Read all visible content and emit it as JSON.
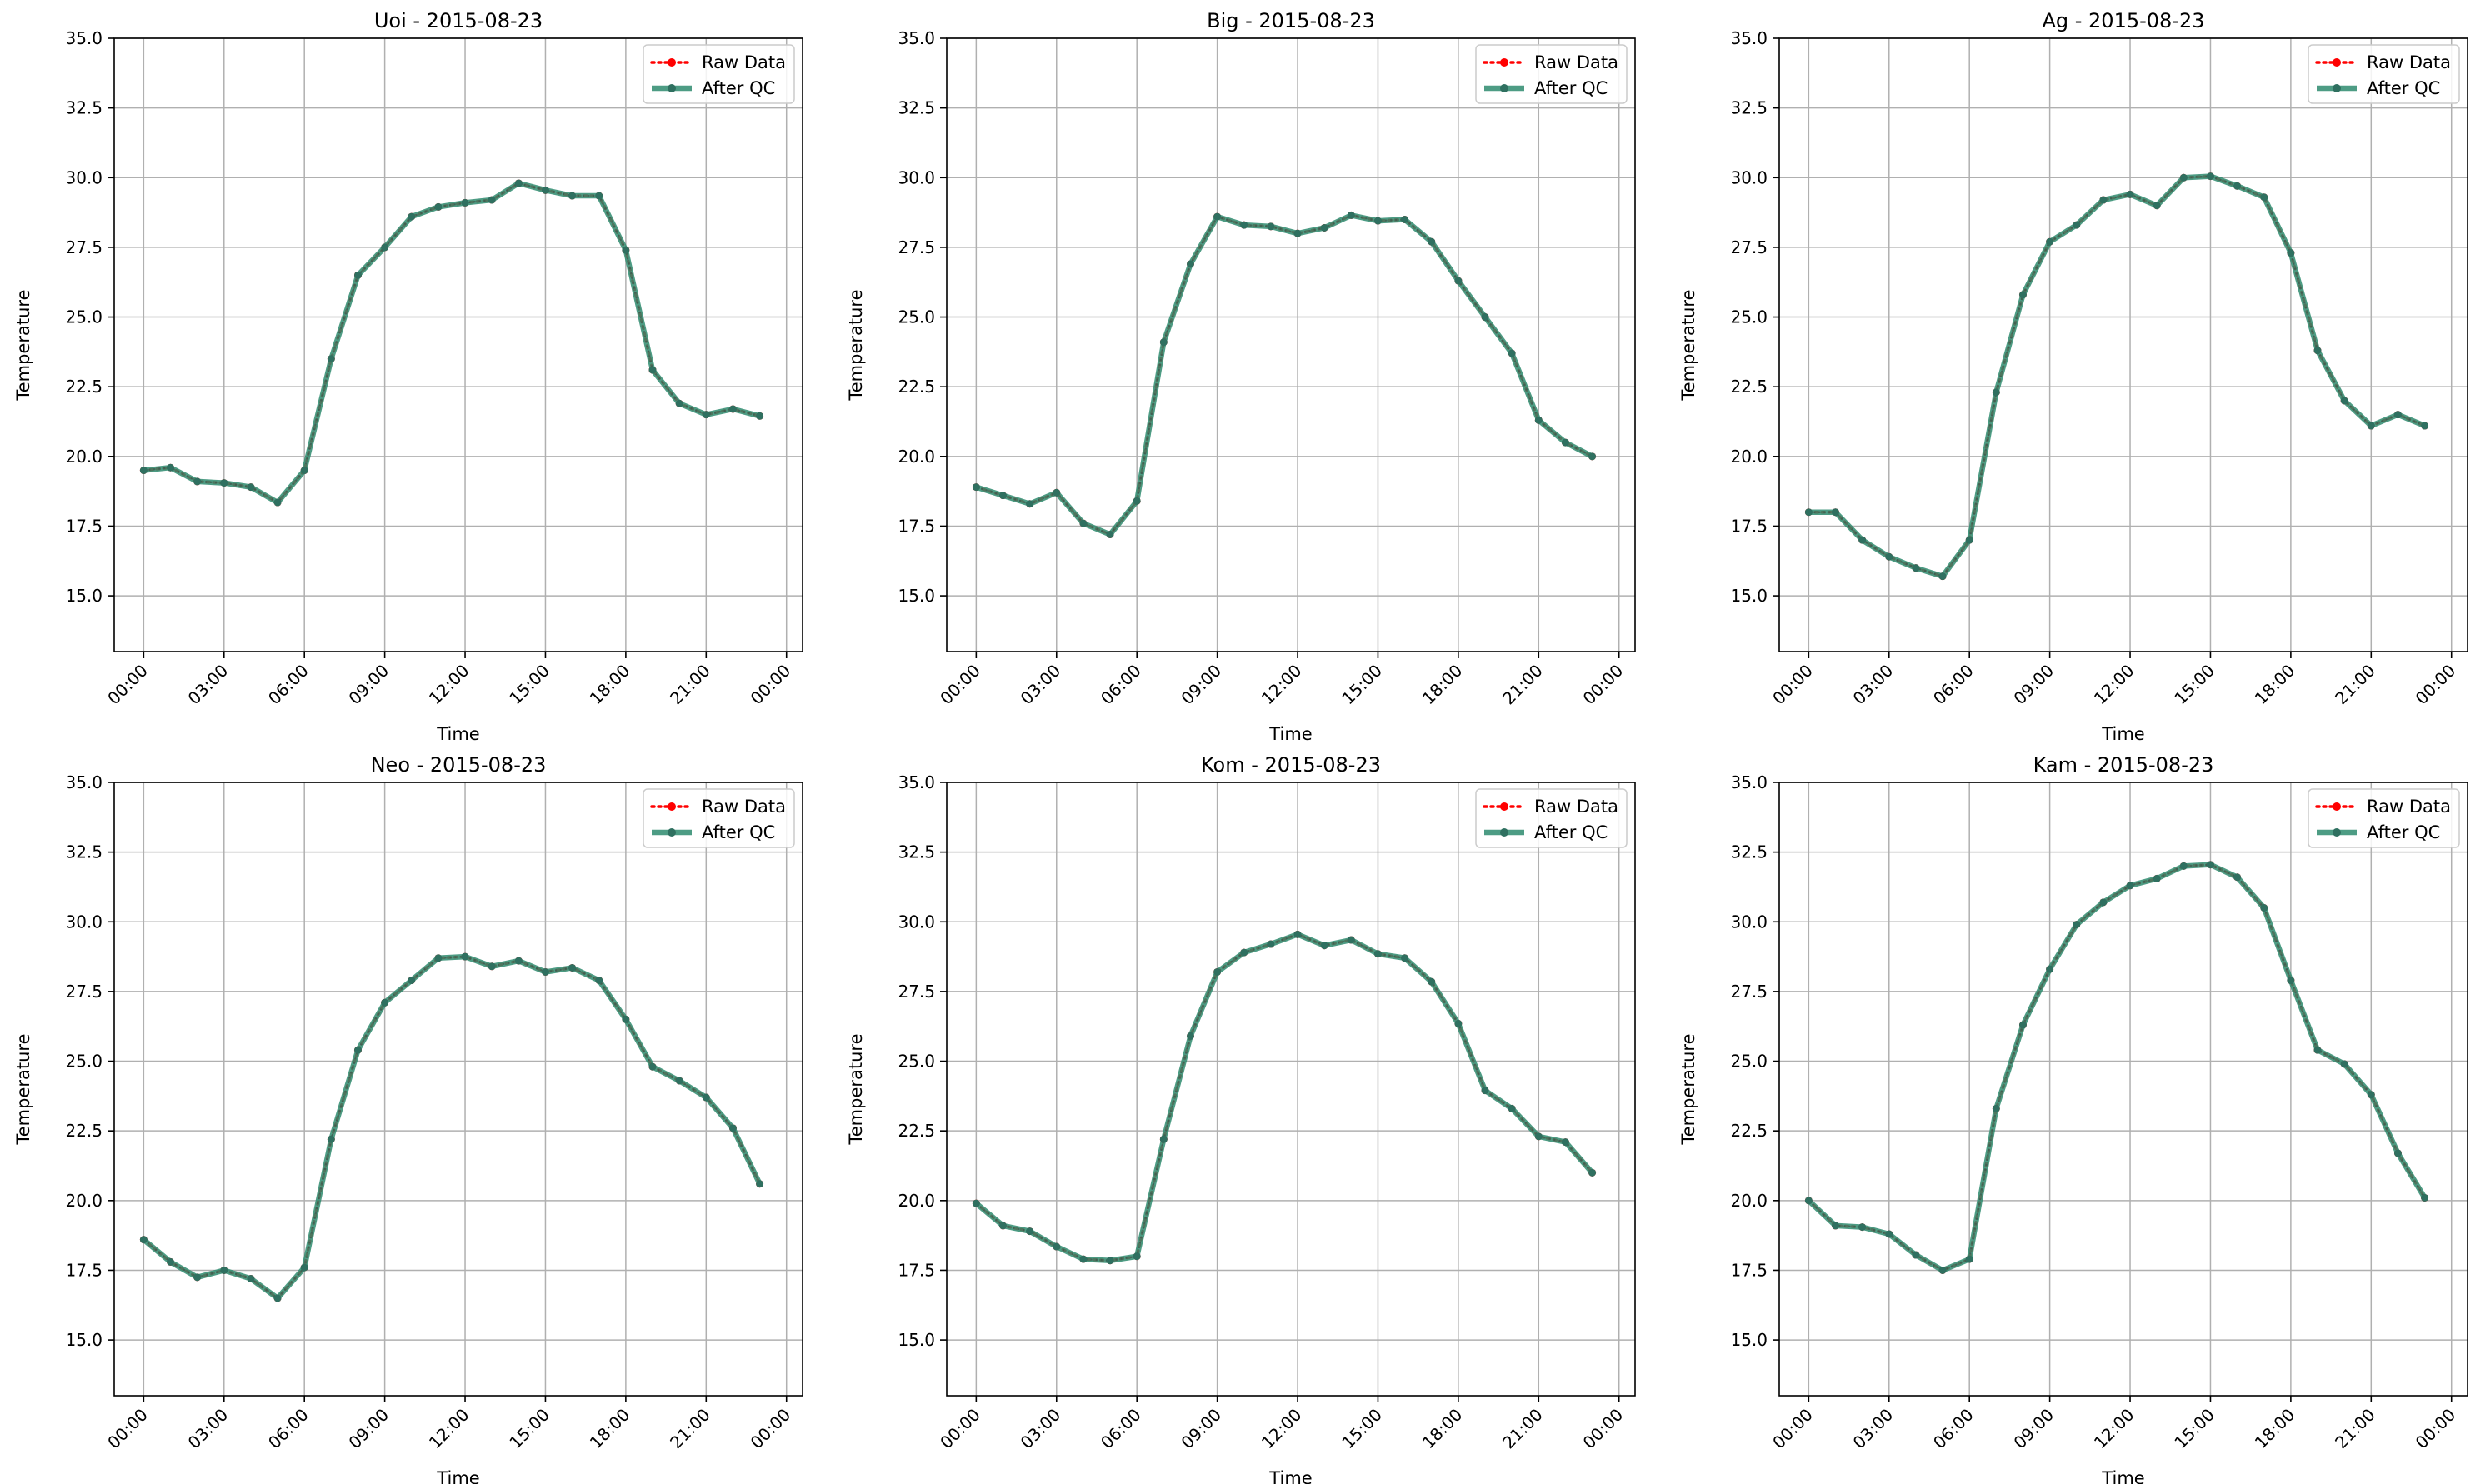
{
  "colors": {
    "raw": "#ff0000",
    "qc": "#2e8b6f",
    "qc_marker": "#2f7060",
    "grid": "#b0b0b0",
    "axes": "#000000",
    "legend_border": "#cccccc"
  },
  "chart_data": [
    {
      "type": "line",
      "title": "Uoi - 2015-08-23",
      "xlabel": "Time",
      "ylabel": "Temperature",
      "ylim": [
        13.0,
        35.0
      ],
      "yticks": [
        "15.0",
        "17.5",
        "20.0",
        "22.5",
        "25.0",
        "27.5",
        "30.0",
        "32.5",
        "35.0"
      ],
      "xticks": [
        "00:00",
        "03:00",
        "06:00",
        "09:00",
        "12:00",
        "15:00",
        "18:00",
        "21:00",
        "00:00"
      ],
      "x_hours": [
        0,
        1,
        2,
        3,
        4,
        5,
        6,
        7,
        8,
        9,
        10,
        11,
        12,
        13,
        14,
        15,
        16,
        17,
        18,
        19,
        20,
        21,
        22,
        23
      ],
      "grid": true,
      "legend": "top-right",
      "series": [
        {
          "name": "Raw Data",
          "style": "dotted",
          "marker": "circle",
          "values": [
            19.5,
            19.6,
            19.1,
            19.05,
            18.9,
            18.35,
            19.5,
            23.5,
            26.5,
            27.5,
            28.6,
            28.95,
            29.1,
            29.2,
            29.8,
            29.55,
            29.35,
            29.35,
            27.4,
            23.1,
            21.9,
            21.5,
            21.7,
            21.45
          ]
        },
        {
          "name": "After QC",
          "style": "solid",
          "marker": "circle",
          "values": [
            19.5,
            19.6,
            19.1,
            19.05,
            18.9,
            18.35,
            19.5,
            23.5,
            26.5,
            27.5,
            28.6,
            28.95,
            29.1,
            29.2,
            29.8,
            29.55,
            29.35,
            29.35,
            27.4,
            23.1,
            21.9,
            21.5,
            21.7,
            21.45
          ]
        }
      ]
    },
    {
      "type": "line",
      "title": "Big - 2015-08-23",
      "xlabel": "Time",
      "ylabel": "Temperature",
      "ylim": [
        13.0,
        35.0
      ],
      "yticks": [
        "15.0",
        "17.5",
        "20.0",
        "22.5",
        "25.0",
        "27.5",
        "30.0",
        "32.5",
        "35.0"
      ],
      "xticks": [
        "00:00",
        "03:00",
        "06:00",
        "09:00",
        "12:00",
        "15:00",
        "18:00",
        "21:00",
        "00:00"
      ],
      "x_hours": [
        0,
        1,
        2,
        3,
        4,
        5,
        6,
        7,
        8,
        9,
        10,
        11,
        12,
        13,
        14,
        15,
        16,
        17,
        18,
        19,
        20,
        21,
        22,
        23
      ],
      "grid": true,
      "legend": "top-right",
      "series": [
        {
          "name": "Raw Data",
          "style": "dotted",
          "marker": "circle",
          "values": [
            18.9,
            18.6,
            18.3,
            18.7,
            17.6,
            17.2,
            18.4,
            24.1,
            26.9,
            28.6,
            28.3,
            28.25,
            28.0,
            28.2,
            28.65,
            28.45,
            28.5,
            27.7,
            26.3,
            25.0,
            23.7,
            21.3,
            20.5,
            20.0
          ]
        },
        {
          "name": "After QC",
          "style": "solid",
          "marker": "circle",
          "values": [
            18.9,
            18.6,
            18.3,
            18.7,
            17.6,
            17.2,
            18.4,
            24.1,
            26.9,
            28.6,
            28.3,
            28.25,
            28.0,
            28.2,
            28.65,
            28.45,
            28.5,
            27.7,
            26.3,
            25.0,
            23.7,
            21.3,
            20.5,
            20.0
          ]
        }
      ]
    },
    {
      "type": "line",
      "title": "Ag - 2015-08-23",
      "xlabel": "Time",
      "ylabel": "Temperature",
      "ylim": [
        13.0,
        35.0
      ],
      "yticks": [
        "15.0",
        "17.5",
        "20.0",
        "22.5",
        "25.0",
        "27.5",
        "30.0",
        "32.5",
        "35.0"
      ],
      "xticks": [
        "00:00",
        "03:00",
        "06:00",
        "09:00",
        "12:00",
        "15:00",
        "18:00",
        "21:00",
        "00:00"
      ],
      "x_hours": [
        0,
        1,
        2,
        3,
        4,
        5,
        6,
        7,
        8,
        9,
        10,
        11,
        12,
        13,
        14,
        15,
        16,
        17,
        18,
        19,
        20,
        21,
        22,
        23
      ],
      "grid": true,
      "legend": "top-right",
      "series": [
        {
          "name": "Raw Data",
          "style": "dotted",
          "marker": "circle",
          "values": [
            18.0,
            18.0,
            17.0,
            16.4,
            16.0,
            15.7,
            17.0,
            22.3,
            25.8,
            27.7,
            28.3,
            29.2,
            29.4,
            29.0,
            30.0,
            30.05,
            29.7,
            29.3,
            27.3,
            23.8,
            22.0,
            21.1,
            21.5,
            21.1
          ]
        },
        {
          "name": "After QC",
          "style": "solid",
          "marker": "circle",
          "values": [
            18.0,
            18.0,
            17.0,
            16.4,
            16.0,
            15.7,
            17.0,
            22.3,
            25.8,
            27.7,
            28.3,
            29.2,
            29.4,
            29.0,
            30.0,
            30.05,
            29.7,
            29.3,
            27.3,
            23.8,
            22.0,
            21.1,
            21.5,
            21.1
          ]
        }
      ]
    },
    {
      "type": "line",
      "title": "Neo - 2015-08-23",
      "xlabel": "Time",
      "ylabel": "Temperature",
      "ylim": [
        13.0,
        35.0
      ],
      "yticks": [
        "15.0",
        "17.5",
        "20.0",
        "22.5",
        "25.0",
        "27.5",
        "30.0",
        "32.5",
        "35.0"
      ],
      "xticks": [
        "00:00",
        "03:00",
        "06:00",
        "09:00",
        "12:00",
        "15:00",
        "18:00",
        "21:00",
        "00:00"
      ],
      "x_hours": [
        0,
        1,
        2,
        3,
        4,
        5,
        6,
        7,
        8,
        9,
        10,
        11,
        12,
        13,
        14,
        15,
        16,
        17,
        18,
        19,
        20,
        21,
        22,
        23
      ],
      "grid": true,
      "legend": "top-right",
      "series": [
        {
          "name": "Raw Data",
          "style": "dotted",
          "marker": "circle",
          "values": [
            18.6,
            17.8,
            17.25,
            17.5,
            17.2,
            16.5,
            17.6,
            22.2,
            25.4,
            27.1,
            27.9,
            28.7,
            28.75,
            28.4,
            28.6,
            28.2,
            28.35,
            27.9,
            26.5,
            24.8,
            24.3,
            23.7,
            22.6,
            20.6
          ]
        },
        {
          "name": "After QC",
          "style": "solid",
          "marker": "circle",
          "values": [
            18.6,
            17.8,
            17.25,
            17.5,
            17.2,
            16.5,
            17.6,
            22.2,
            25.4,
            27.1,
            27.9,
            28.7,
            28.75,
            28.4,
            28.6,
            28.2,
            28.35,
            27.9,
            26.5,
            24.8,
            24.3,
            23.7,
            22.6,
            20.6
          ]
        }
      ]
    },
    {
      "type": "line",
      "title": "Kom - 2015-08-23",
      "xlabel": "Time",
      "ylabel": "Temperature",
      "ylim": [
        13.0,
        35.0
      ],
      "yticks": [
        "15.0",
        "17.5",
        "20.0",
        "22.5",
        "25.0",
        "27.5",
        "30.0",
        "32.5",
        "35.0"
      ],
      "xticks": [
        "00:00",
        "03:00",
        "06:00",
        "09:00",
        "12:00",
        "15:00",
        "18:00",
        "21:00",
        "00:00"
      ],
      "x_hours": [
        0,
        1,
        2,
        3,
        4,
        5,
        6,
        7,
        8,
        9,
        10,
        11,
        12,
        13,
        14,
        15,
        16,
        17,
        18,
        19,
        20,
        21,
        22,
        23
      ],
      "grid": true,
      "legend": "top-right",
      "series": [
        {
          "name": "Raw Data",
          "style": "dotted",
          "marker": "circle",
          "values": [
            19.9,
            19.1,
            18.9,
            18.35,
            17.9,
            17.85,
            18.0,
            22.2,
            25.9,
            28.2,
            28.9,
            29.2,
            29.55,
            29.15,
            29.35,
            28.85,
            28.7,
            27.85,
            26.35,
            23.95,
            23.3,
            22.3,
            22.1,
            21.0
          ]
        },
        {
          "name": "After QC",
          "style": "solid",
          "marker": "circle",
          "values": [
            19.9,
            19.1,
            18.9,
            18.35,
            17.9,
            17.85,
            18.0,
            22.2,
            25.9,
            28.2,
            28.9,
            29.2,
            29.55,
            29.15,
            29.35,
            28.85,
            28.7,
            27.85,
            26.35,
            23.95,
            23.3,
            22.3,
            22.1,
            21.0
          ]
        }
      ]
    },
    {
      "type": "line",
      "title": "Kam - 2015-08-23",
      "xlabel": "Time",
      "ylabel": "Temperature",
      "ylim": [
        13.0,
        35.0
      ],
      "yticks": [
        "15.0",
        "17.5",
        "20.0",
        "22.5",
        "25.0",
        "27.5",
        "30.0",
        "32.5",
        "35.0"
      ],
      "xticks": [
        "00:00",
        "03:00",
        "06:00",
        "09:00",
        "12:00",
        "15:00",
        "18:00",
        "21:00",
        "00:00"
      ],
      "x_hours": [
        0,
        1,
        2,
        3,
        4,
        5,
        6,
        7,
        8,
        9,
        10,
        11,
        12,
        13,
        14,
        15,
        16,
        17,
        18,
        19,
        20,
        21,
        22,
        23
      ],
      "grid": true,
      "legend": "top-right",
      "series": [
        {
          "name": "Raw Data",
          "style": "dotted",
          "marker": "circle",
          "values": [
            20.0,
            19.1,
            19.05,
            18.8,
            18.05,
            17.5,
            17.9,
            23.3,
            26.3,
            28.3,
            29.9,
            30.7,
            31.3,
            31.55,
            32.0,
            32.05,
            31.6,
            30.5,
            27.9,
            25.4,
            24.9,
            23.8,
            21.7,
            20.1
          ]
        },
        {
          "name": "After QC",
          "style": "solid",
          "marker": "circle",
          "values": [
            20.0,
            19.1,
            19.05,
            18.8,
            18.05,
            17.5,
            17.9,
            23.3,
            26.3,
            28.3,
            29.9,
            30.7,
            31.3,
            31.55,
            32.0,
            32.05,
            31.6,
            30.5,
            27.9,
            25.4,
            24.9,
            23.8,
            21.7,
            20.1
          ]
        }
      ]
    }
  ]
}
